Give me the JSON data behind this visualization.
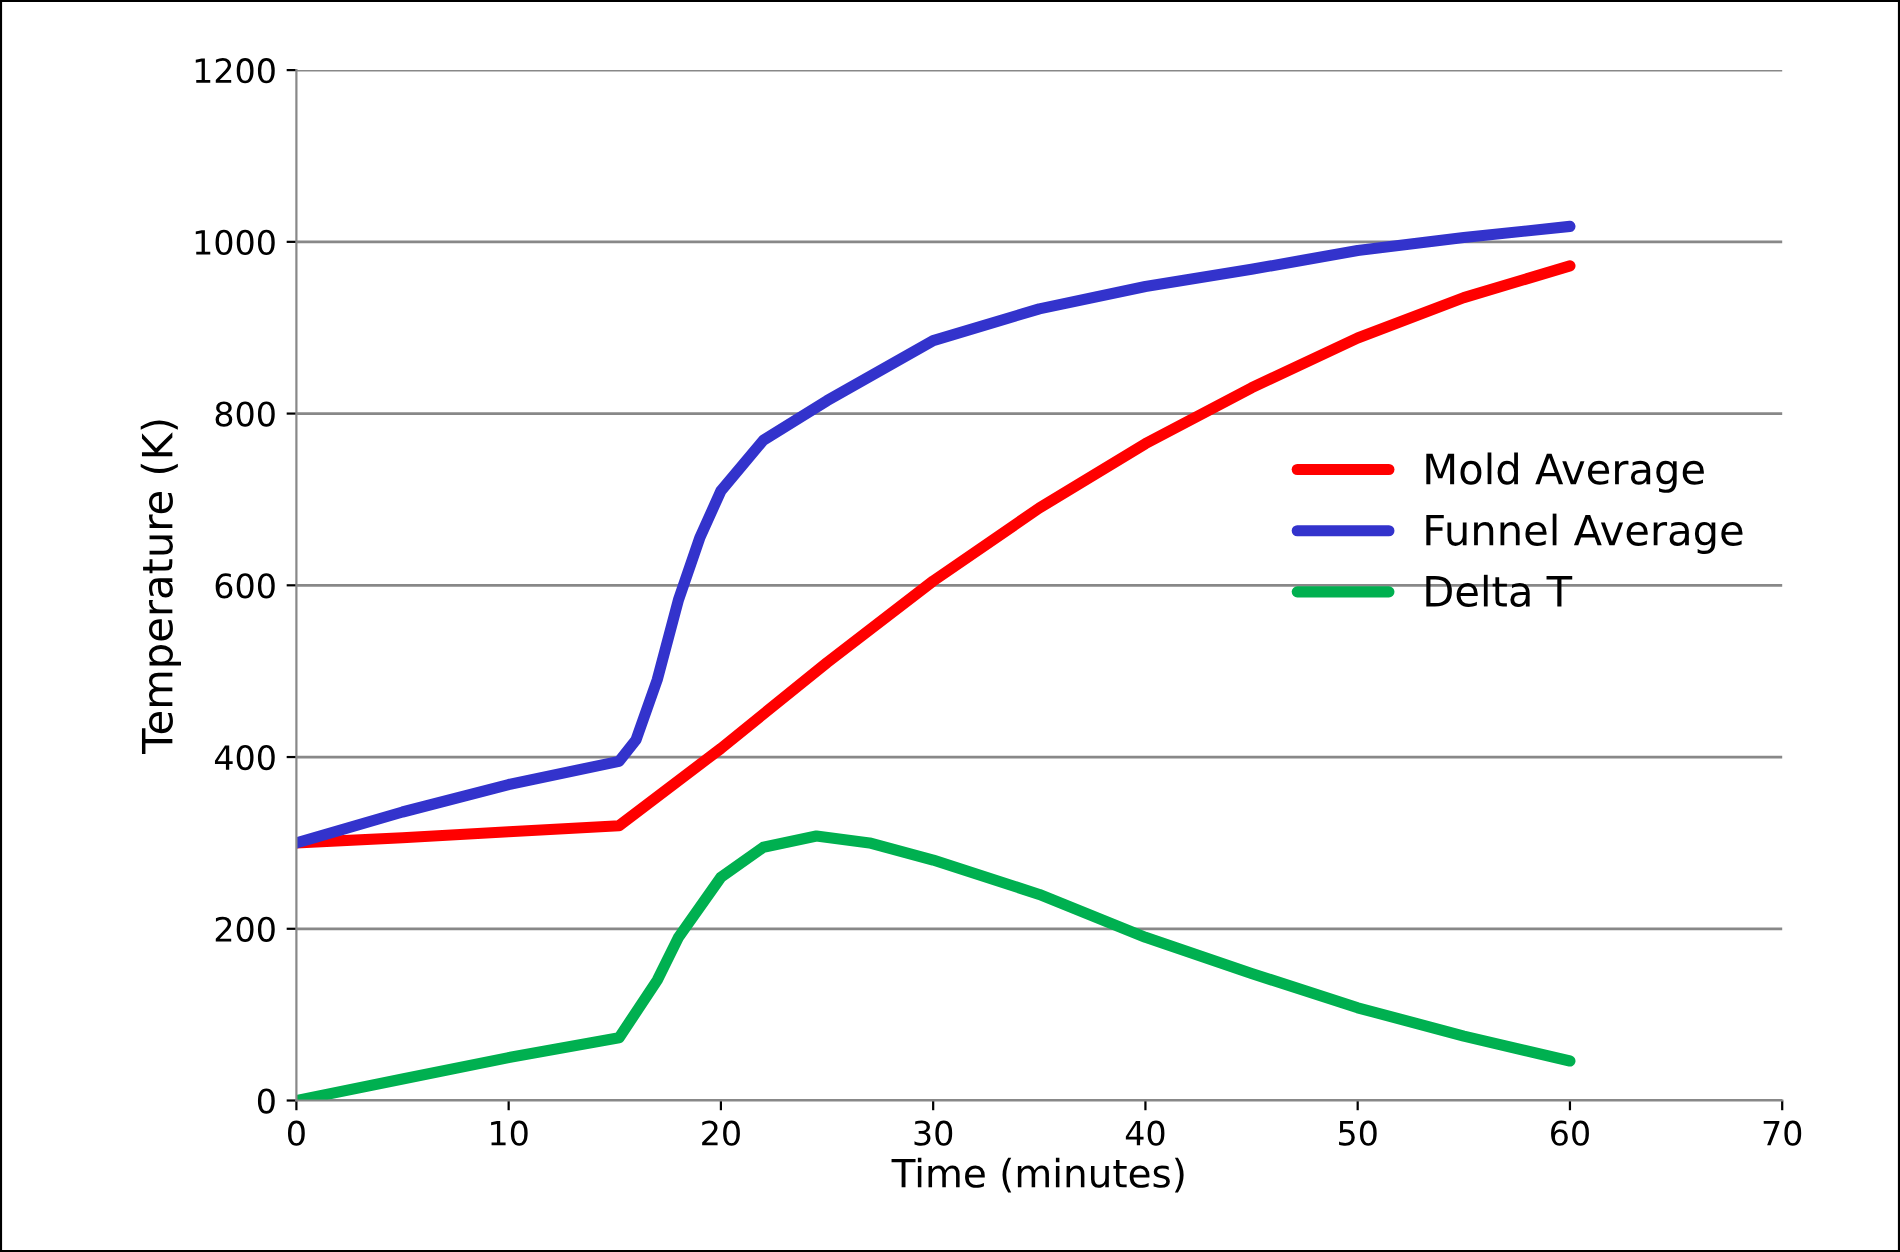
{
  "chart_data": {
    "type": "line",
    "xlabel": "Time (minutes)",
    "ylabel": "Temperature (K)",
    "xlim": [
      0,
      70
    ],
    "xticks": [
      0,
      10,
      20,
      30,
      40,
      50,
      60,
      70
    ],
    "ylim": [
      0,
      1200
    ],
    "yticks": [
      0,
      200,
      400,
      600,
      800,
      1000,
      1200
    ],
    "grid": "y",
    "legend": "right",
    "marker": "none",
    "line_style": "solid",
    "series": [
      {
        "name": "Mold Average",
        "color": "#ff0000",
        "x": [
          0,
          5,
          10,
          15.2,
          20,
          25,
          30,
          35,
          40,
          45,
          50,
          55,
          60
        ],
        "values": [
          300,
          306,
          313,
          320,
          410,
          510,
          605,
          690,
          765,
          830,
          888,
          935,
          972
        ]
      },
      {
        "name": "Funnel Average",
        "color": "#3333cc",
        "x": [
          0,
          5,
          10,
          15.2,
          16,
          17,
          18,
          19,
          20,
          22,
          25,
          30,
          35,
          40,
          45,
          50,
          55,
          60
        ],
        "values": [
          300,
          336,
          368,
          395,
          420,
          490,
          583,
          655,
          710,
          769,
          815,
          885,
          922,
          948,
          968,
          990,
          1005,
          1018
        ]
      },
      {
        "name": "Delta T",
        "color": "#00b050",
        "x": [
          0,
          5,
          10,
          15.2,
          17,
          18,
          20,
          22,
          24.5,
          27,
          30,
          35,
          40,
          45,
          50,
          55,
          60
        ],
        "values": [
          0,
          25,
          50,
          73,
          140,
          190,
          260,
          295,
          308,
          300,
          280,
          240,
          190,
          148,
          108,
          75,
          46
        ]
      }
    ]
  }
}
